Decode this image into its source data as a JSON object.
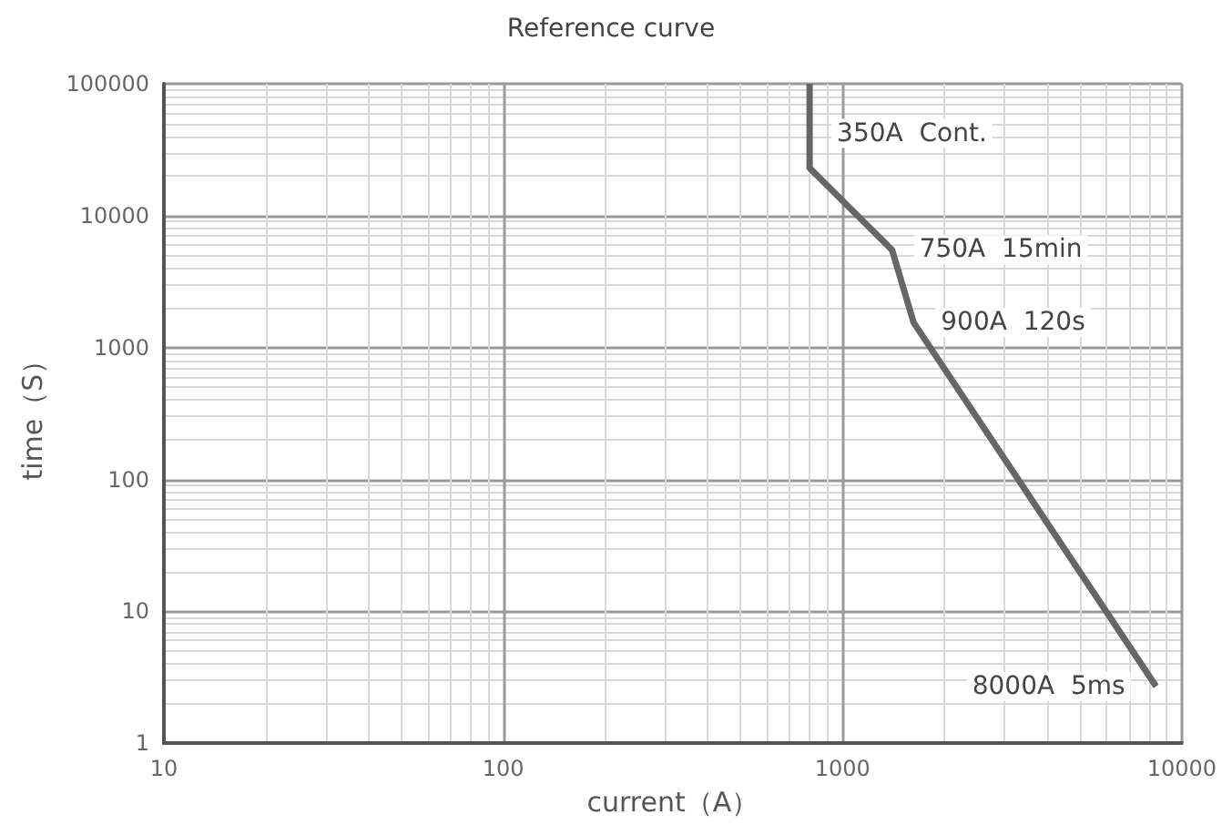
{
  "chart_data": {
    "type": "line",
    "title": "Reference curve",
    "xlabel": "current（A）",
    "ylabel": "time（S）",
    "x": [
      800,
      800,
      1400,
      1620,
      8400
    ],
    "series": [
      {
        "color": "#666666",
        "values": [
          100000,
          23000,
          5500,
          1550,
          2.7
        ]
      }
    ],
    "xlim": [
      10,
      10000
    ],
    "ylim": [
      1,
      100000
    ],
    "xticks": [
      10,
      100,
      1000,
      10000
    ],
    "yticks": [
      1,
      10,
      100,
      1000,
      10000,
      100000
    ],
    "log": "xy",
    "grid": true,
    "marker": "none",
    "line_style": "solid",
    "annotations": [
      {
        "text": "350A  Cont.",
        "x": 800,
        "y": 42000
      },
      {
        "text": "750A  15min",
        "x": 1400,
        "y": 5500
      },
      {
        "text": "900A  120s",
        "x": 1620,
        "y": 1550
      },
      {
        "text": "8000A  5ms",
        "x": 8400,
        "y": 2.7
      }
    ]
  }
}
